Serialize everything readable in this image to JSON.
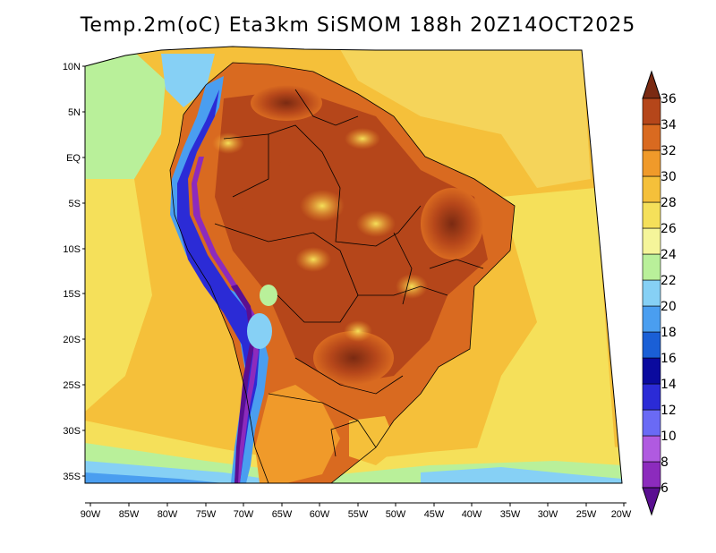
{
  "title": "Temp.2m(oC) Eta3km SiSMOM 188h 20Z14OCT2025",
  "map": {
    "variable": "2m temperature",
    "unit": "oC",
    "model": "Eta3km SiSMOM",
    "forecast_hour": "188h",
    "valid_time": "20Z14OCT2025",
    "lat_labels": [
      "10N",
      "5N",
      "EQ",
      "5S",
      "10S",
      "15S",
      "20S",
      "25S",
      "30S",
      "35S"
    ],
    "lon_labels": [
      "90W",
      "85W",
      "80W",
      "75W",
      "70W",
      "65W",
      "60W",
      "55W",
      "50W",
      "45W",
      "40W",
      "35W",
      "30W",
      "25W",
      "20W"
    ]
  },
  "colorbar": {
    "levels": [
      "6",
      "8",
      "10",
      "12",
      "14",
      "16",
      "18",
      "20",
      "22",
      "24",
      "26",
      "28",
      "30",
      "32",
      "34",
      "36"
    ],
    "colors": [
      "#5a0f91",
      "#8c2bbd",
      "#b05ae0",
      "#6a6af5",
      "#2b2bd6",
      "#0a0a9e",
      "#1a5fd6",
      "#4a9ef0",
      "#86d0f5",
      "#b9f09a",
      "#f5f59a",
      "#f5e05a",
      "#f5c03a",
      "#f09a2a",
      "#d96a20",
      "#b5461a",
      "#7a2a12"
    ]
  }
}
